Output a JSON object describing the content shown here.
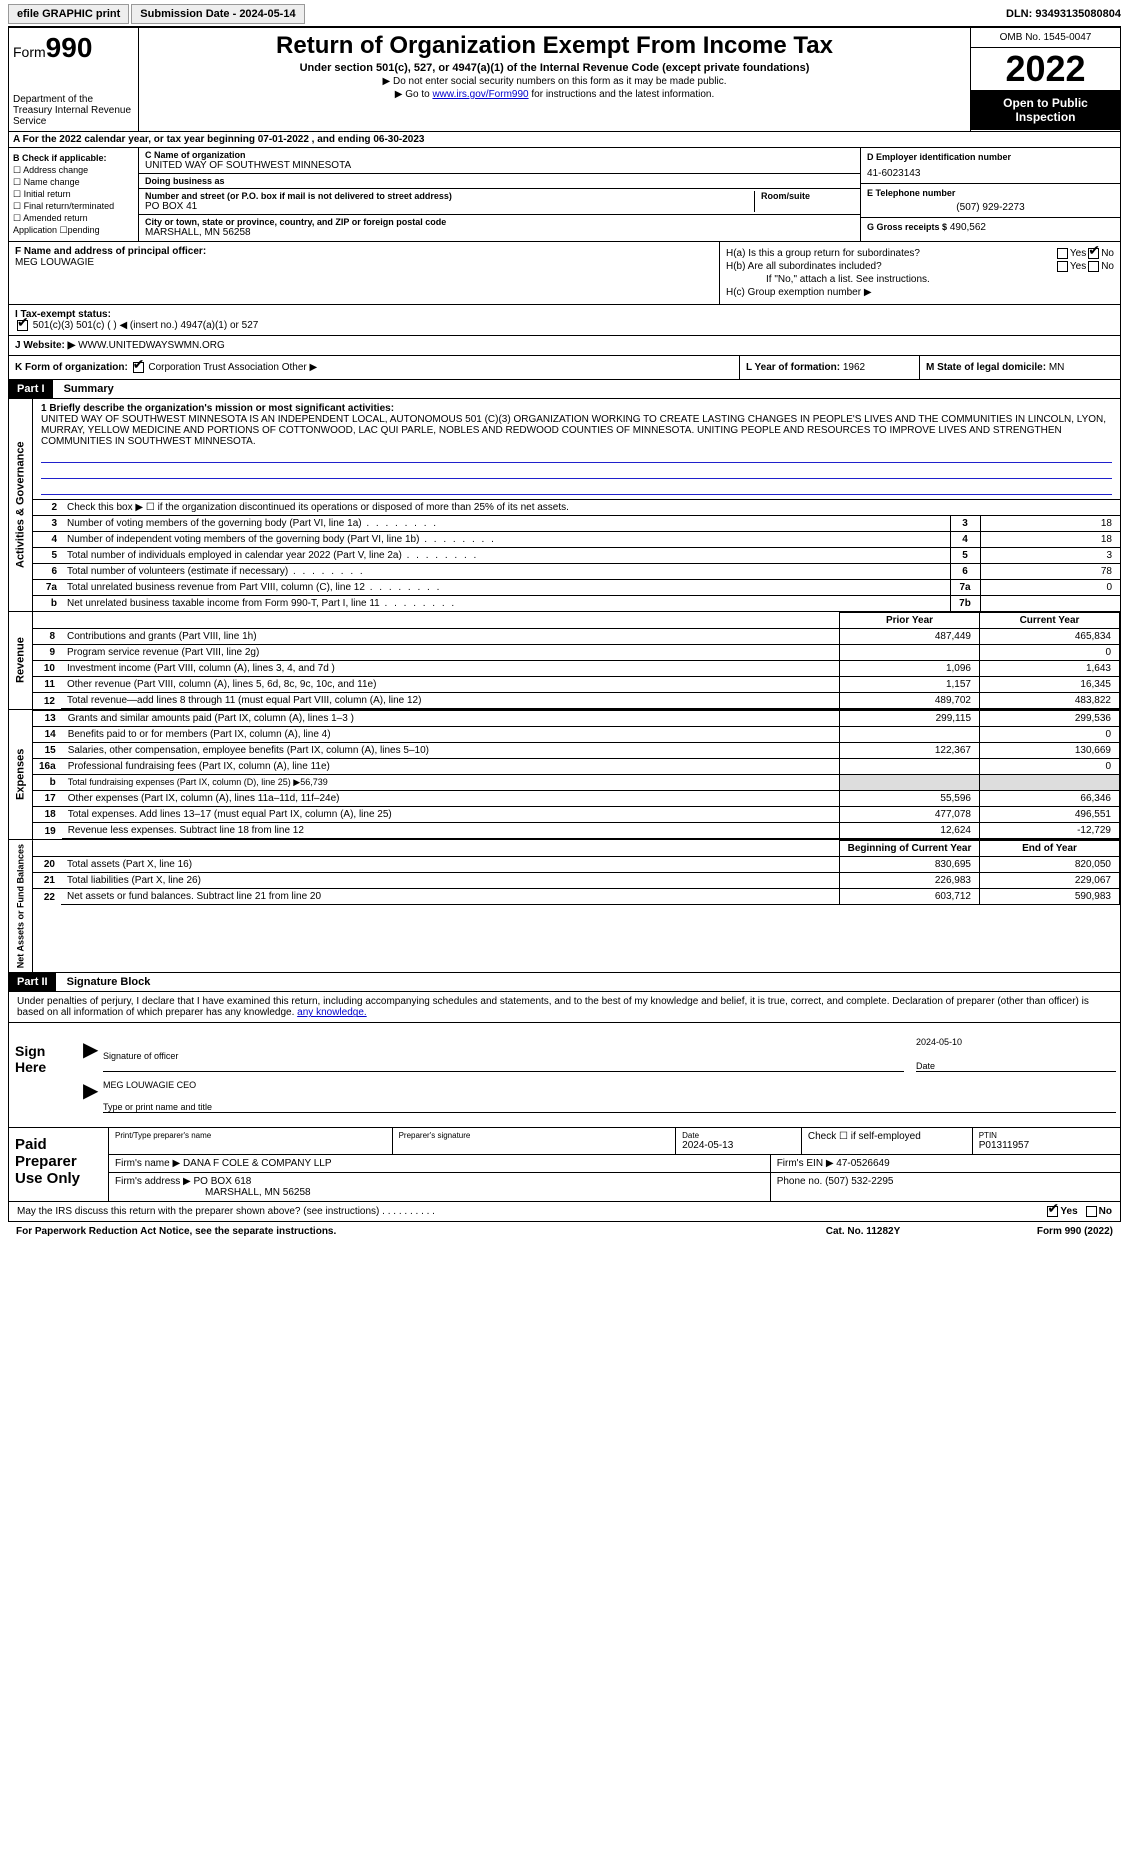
{
  "topbar": {
    "efile_btn": "efile GRAPHIC print",
    "submission_label": "Submission Date - 2024-05-14",
    "dln": "DLN: 93493135080804"
  },
  "header": {
    "form_label": "Form",
    "form_no": "990",
    "dept": "Department of the Treasury Internal Revenue Service",
    "title": "Return of Organization Exempt From Income Tax",
    "subtitle": "Under section 501(c), 527, or 4947(a)(1) of the Internal Revenue Code (except private foundations)",
    "note1": "▶ Do not enter social security numbers on this form as it may be made public.",
    "note2_pre": "▶ Go to ",
    "note2_link": "www.irs.gov/Form990",
    "note2_post": " for instructions and the latest information.",
    "omb": "OMB No. 1545-0047",
    "year": "2022",
    "open": "Open to Public Inspection"
  },
  "row_a": "A For the 2022 calendar year, or tax year beginning 07-01-2022    , and ending 06-30-2023",
  "col_b": {
    "hdr": "B Check if applicable:",
    "items": [
      "☐ Address change",
      "☐ Name change",
      "☐ Initial return",
      "☐ Final return/terminated",
      "☐ Amended return",
      "   Application ☐pending"
    ]
  },
  "col_c": {
    "name_lbl": "C Name of organization",
    "name": "UNITED WAY OF SOUTHWEST MINNESOTA",
    "dba_lbl": "Doing business as",
    "dba": "",
    "street_lbl": "Number and street (or P.O. box if mail is not delivered to street address)",
    "street": "PO BOX 41",
    "room_lbl": "Room/suite",
    "city_lbl": "City or town, state or province, country, and ZIP or foreign postal code",
    "city": "MARSHALL, MN  56258"
  },
  "col_d": {
    "ein_lbl": "D Employer identification number",
    "ein": "41-6023143",
    "phone_lbl": "E Telephone number",
    "phone": "(507) 929-2273",
    "gross_lbl": "G Gross receipts $",
    "gross": "490,562"
  },
  "col_f": {
    "lbl": "F  Name and address of principal officer:",
    "name": "MEG LOUWAGIE"
  },
  "col_h": {
    "ha": "H(a)  Is this a group return for subordinates?",
    "hb": "H(b)  Are all subordinates included?",
    "hb_note": "If \"No,\" attach a list. See instructions.",
    "hc": "H(c)  Group exemption number ▶"
  },
  "row_i": {
    "lbl": "I   Tax-exempt status:",
    "opts": "501(c)(3)        501(c) (  ) ◀ (insert no.)        4947(a)(1) or        527"
  },
  "row_j": {
    "lbl": "J   Website: ▶",
    "val": " WWW.UNITEDWAYSWMN.ORG"
  },
  "row_k": {
    "lbl": "K Form of organization:",
    "opts": "Corporation        Trust        Association        Other ▶"
  },
  "row_l": {
    "lbl": "L Year of formation:",
    "val": "1962"
  },
  "row_m": {
    "lbl": "M State of legal domicile:",
    "val": "MN"
  },
  "part1": {
    "hdr": "Part I",
    "title": "Summary"
  },
  "mission": {
    "lbl": "1  Briefly describe the organization's mission or most significant activities:",
    "text": "UNITED WAY OF SOUTHWEST MINNESOTA IS AN INDEPENDENT LOCAL, AUTONOMOUS 501 (C)(3) ORGANIZATION WORKING TO CREATE LASTING CHANGES IN PEOPLE'S LIVES AND THE COMMUNITIES IN LINCOLN, LYON, MURRAY, YELLOW MEDICINE AND PORTIONS OF COTTONWOOD, LAC QUI PARLE, NOBLES AND REDWOOD COUNTIES OF MINNESOTA. UNITING PEOPLE AND RESOURCES TO IMPROVE LIVES AND STRENGTHEN COMMUNITIES IN SOUTHWEST MINNESOTA."
  },
  "gov_lines": {
    "l2": "Check this box ▶ ☐  if the organization discontinued its operations or disposed of more than 25% of its net assets.",
    "l3": {
      "t": "Number of voting members of the governing body (Part VI, line 1a)",
      "n": "3",
      "v": "18"
    },
    "l4": {
      "t": "Number of independent voting members of the governing body (Part VI, line 1b)",
      "n": "4",
      "v": "18"
    },
    "l5": {
      "t": "Total number of individuals employed in calendar year 2022 (Part V, line 2a)",
      "n": "5",
      "v": "3"
    },
    "l6": {
      "t": "Total number of volunteers (estimate if necessary)",
      "n": "6",
      "v": "78"
    },
    "l7a": {
      "t": "Total unrelated business revenue from Part VIII, column (C), line 12",
      "n": "7a",
      "v": "0"
    },
    "l7b": {
      "t": "Net unrelated business taxable income from Form 990-T, Part I, line 11",
      "n": "7b",
      "v": ""
    }
  },
  "fin_hdr": {
    "prior": "Prior Year",
    "current": "Current Year",
    "boy": "Beginning of Current Year",
    "eoy": "End of Year"
  },
  "revenue": [
    {
      "n": "8",
      "t": "Contributions and grants (Part VIII, line 1h)",
      "p": "487,449",
      "c": "465,834"
    },
    {
      "n": "9",
      "t": "Program service revenue (Part VIII, line 2g)",
      "p": "",
      "c": "0"
    },
    {
      "n": "10",
      "t": "Investment income (Part VIII, column (A), lines 3, 4, and 7d )",
      "p": "1,096",
      "c": "1,643"
    },
    {
      "n": "11",
      "t": "Other revenue (Part VIII, column (A), lines 5, 6d, 8c, 9c, 10c, and 11e)",
      "p": "1,157",
      "c": "16,345"
    },
    {
      "n": "12",
      "t": "Total revenue—add lines 8 through 11 (must equal Part VIII, column (A), line 12)",
      "p": "489,702",
      "c": "483,822"
    }
  ],
  "expenses": [
    {
      "n": "13",
      "t": "Grants and similar amounts paid (Part IX, column (A), lines 1–3 )",
      "p": "299,115",
      "c": "299,536"
    },
    {
      "n": "14",
      "t": "Benefits paid to or for members (Part IX, column (A), line 4)",
      "p": "",
      "c": "0"
    },
    {
      "n": "15",
      "t": "Salaries, other compensation, employee benefits (Part IX, column (A), lines 5–10)",
      "p": "122,367",
      "c": "130,669"
    },
    {
      "n": "16a",
      "t": "Professional fundraising fees (Part IX, column (A), line 11e)",
      "p": "",
      "c": "0"
    },
    {
      "n": "b",
      "t": "Total fundraising expenses (Part IX, column (D), line 25) ▶56,739",
      "p": "shaded",
      "c": "shaded"
    },
    {
      "n": "17",
      "t": "Other expenses (Part IX, column (A), lines 11a–11d, 11f–24e)",
      "p": "55,596",
      "c": "66,346"
    },
    {
      "n": "18",
      "t": "Total expenses. Add lines 13–17 (must equal Part IX, column (A), line 25)",
      "p": "477,078",
      "c": "496,551"
    },
    {
      "n": "19",
      "t": "Revenue less expenses. Subtract line 18 from line 12",
      "p": "12,624",
      "c": "-12,729"
    }
  ],
  "netassets": [
    {
      "n": "20",
      "t": "Total assets (Part X, line 16)",
      "p": "830,695",
      "c": "820,050"
    },
    {
      "n": "21",
      "t": "Total liabilities (Part X, line 26)",
      "p": "226,983",
      "c": "229,067"
    },
    {
      "n": "22",
      "t": "Net assets or fund balances. Subtract line 21 from line 20",
      "p": "603,712",
      "c": "590,983"
    }
  ],
  "vert": {
    "gov": "Activities & Governance",
    "rev": "Revenue",
    "exp": "Expenses",
    "net": "Net Assets or Fund Balances"
  },
  "part2": {
    "hdr": "Part II",
    "title": "Signature Block"
  },
  "sig_decl": "Under penalties of perjury, I declare that I have examined this return, including accompanying schedules and statements, and to the best of my knowledge and belief, it is true, correct, and complete. Declaration of preparer (other than officer) is based on all information of which preparer has any knowledge.",
  "sign": {
    "here": "Sign Here",
    "sig_officer": "Signature of officer",
    "date": "Date",
    "date_val": "2024-05-10",
    "name": "MEG LOUWAGIE CEO",
    "name_lbl": "Type or print name and title"
  },
  "preparer": {
    "lbl": "Paid Preparer Use Only",
    "print_lbl": "Print/Type preparer's name",
    "sig_lbl": "Preparer's signature",
    "date_lbl": "Date",
    "date": "2024-05-13",
    "check_lbl": "Check ☐ if self-employed",
    "ptin_lbl": "PTIN",
    "ptin": "P01311957",
    "firm_name_lbl": "Firm's name    ▶",
    "firm_name": "DANA F COLE & COMPANY LLP",
    "firm_ein_lbl": "Firm's EIN ▶",
    "firm_ein": "47-0526649",
    "firm_addr_lbl": "Firm's address ▶",
    "firm_addr": "PO BOX 618",
    "firm_city": "MARSHALL, MN  56258",
    "phone_lbl": "Phone no.",
    "phone": "(507) 532-2295"
  },
  "discuss": "May the IRS discuss this return with the preparer shown above? (see instructions)   .   .   .   .   .   .   .   .   .   .",
  "footer": {
    "left": "For Paperwork Reduction Act Notice, see the separate instructions.",
    "mid": "Cat. No. 11282Y",
    "right": "Form 990 (2022)"
  }
}
